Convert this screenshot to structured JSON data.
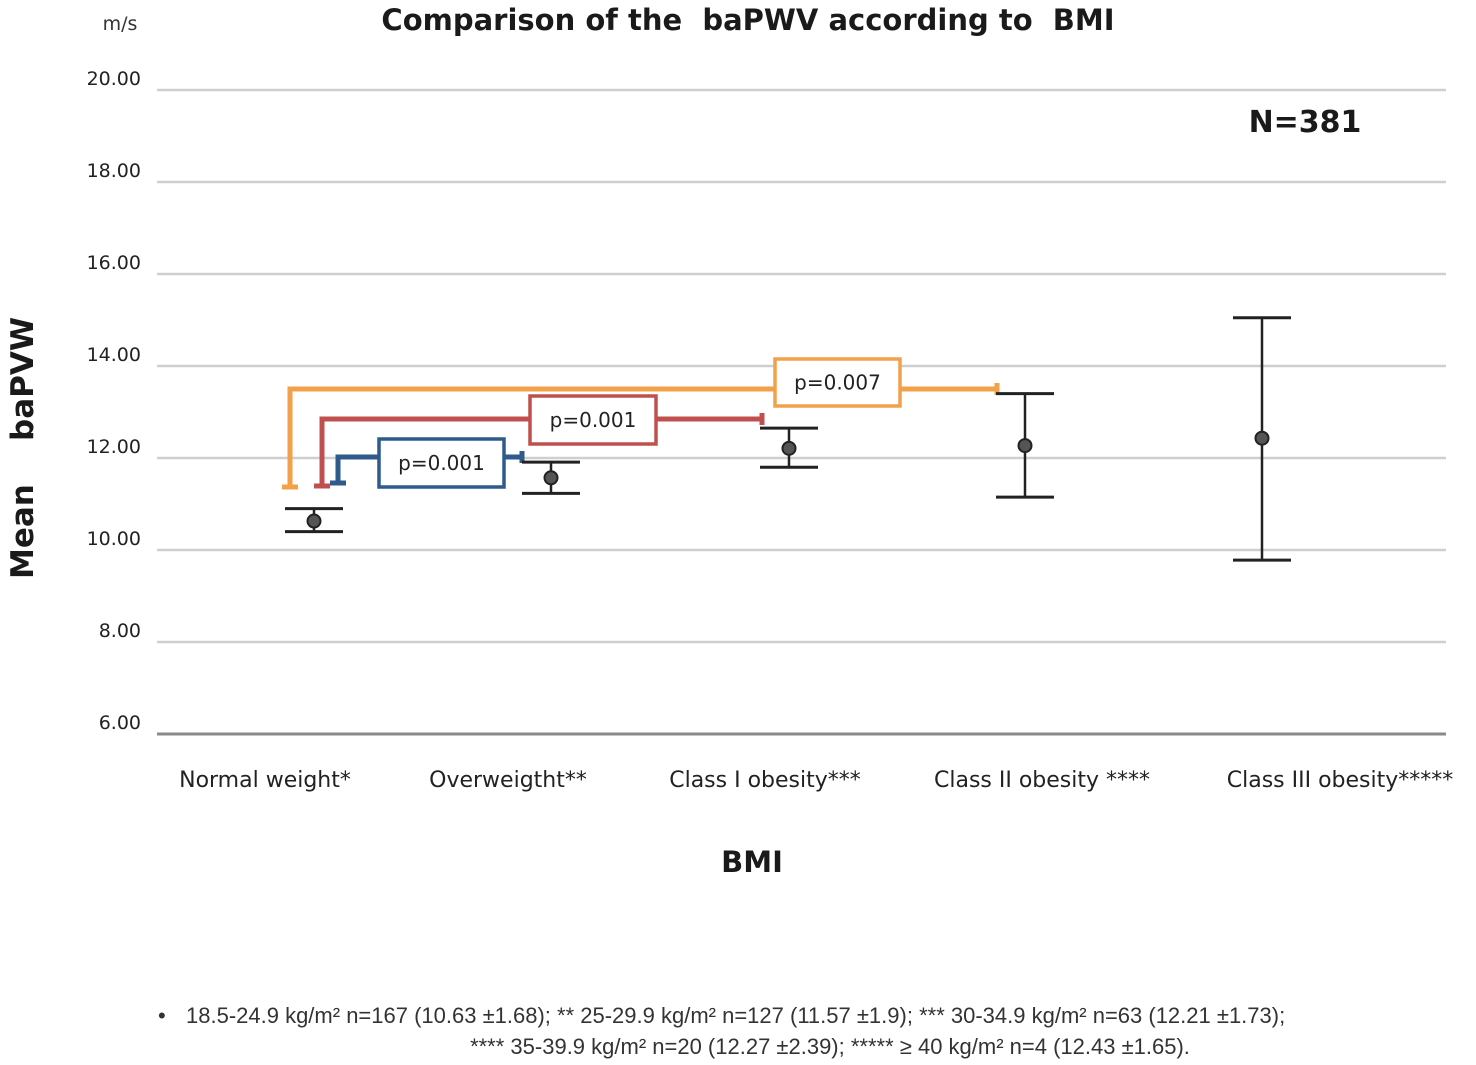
{
  "chart_data": {
    "type": "scatter",
    "title": "Comparison of the  baPWV according to  BMI",
    "unit_label": "m/s",
    "ylabel": "Mean    baPVW",
    "xlabel": "BMI",
    "annotation": "N=381",
    "ylim": [
      6,
      20
    ],
    "yticks": [
      "20.00",
      "18.00",
      "16.00",
      "14.00",
      "12.00",
      "10.00",
      "8.00",
      "6.00"
    ],
    "grid": true,
    "categories": [
      "Normal weight*",
      "Overweigtht**",
      "Class I obesity***",
      "Class II obesity ****",
      "Class III obesity*****"
    ],
    "series": [
      {
        "mean": [
          10.63,
          11.57,
          12.21,
          12.27,
          12.43
        ],
        "error_low": [
          10.4,
          11.23,
          11.8,
          11.15,
          9.78
        ],
        "error_high": [
          10.9,
          11.91,
          12.65,
          13.4,
          15.05
        ]
      }
    ],
    "comparisons": [
      {
        "label": "p=0.001",
        "from": 0,
        "to": 1,
        "color": "#2e5a8c"
      },
      {
        "label": "p=0.001",
        "from": 0,
        "to": 2,
        "color": "#c0504d"
      },
      {
        "label": "p=0.007",
        "from": 0,
        "to": 3,
        "color": "#f2a14a"
      }
    ]
  },
  "footnote": {
    "line1": "18.5-24.9 kg/m² n=167 (10.63 ±1.68); ** 25-29.9 kg/m² n=127 (11.57 ±1.9); *** 30-34.9 kg/m² n=63 (12.21 ±1.73);",
    "line2": "**** 35-39.9 kg/m² n=20 (12.27 ±2.39); ***** ≥ 40 kg/m² n=4 (12.43 ±1.65)."
  }
}
